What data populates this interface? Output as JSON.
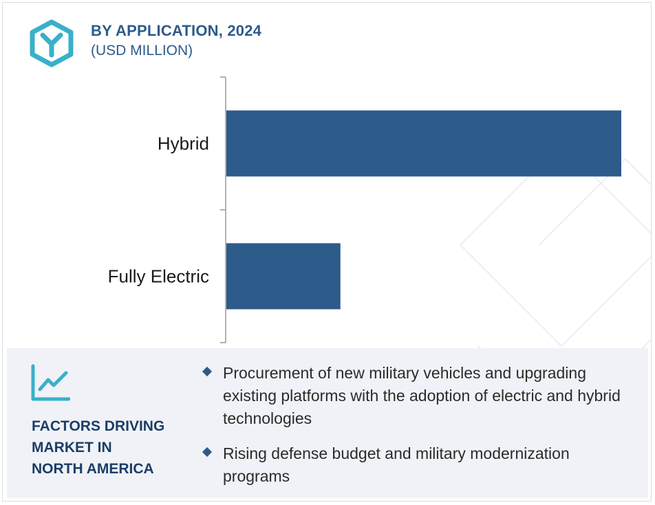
{
  "header": {
    "title": "BY APPLICATION, 2024",
    "subtitle": "(USD MILLION)",
    "logo_icon": "hexagon-y-logo-icon",
    "accent_color": "#3ab0c8"
  },
  "chart_data": {
    "type": "bar",
    "orientation": "horizontal",
    "categories": [
      "Hybrid",
      "Fully Electric"
    ],
    "values": [
      100,
      29
    ],
    "value_axis": {
      "range": [
        0,
        100
      ],
      "tick_labels_shown": false
    },
    "grid": false,
    "bar_color": "#2d5b8a",
    "axis_color": "#999999"
  },
  "factors": {
    "icon": "line-chart-icon",
    "heading_lines": [
      "FACTORS DRIVING",
      "MARKET IN",
      "NORTH AMERICA"
    ],
    "items": [
      "Procurement of new military vehicles and upgrading existing platforms with the adoption of electric and hybrid technologies",
      "Rising defense budget and military modernization programs"
    ],
    "bullet_color": "#2d5b8a"
  }
}
